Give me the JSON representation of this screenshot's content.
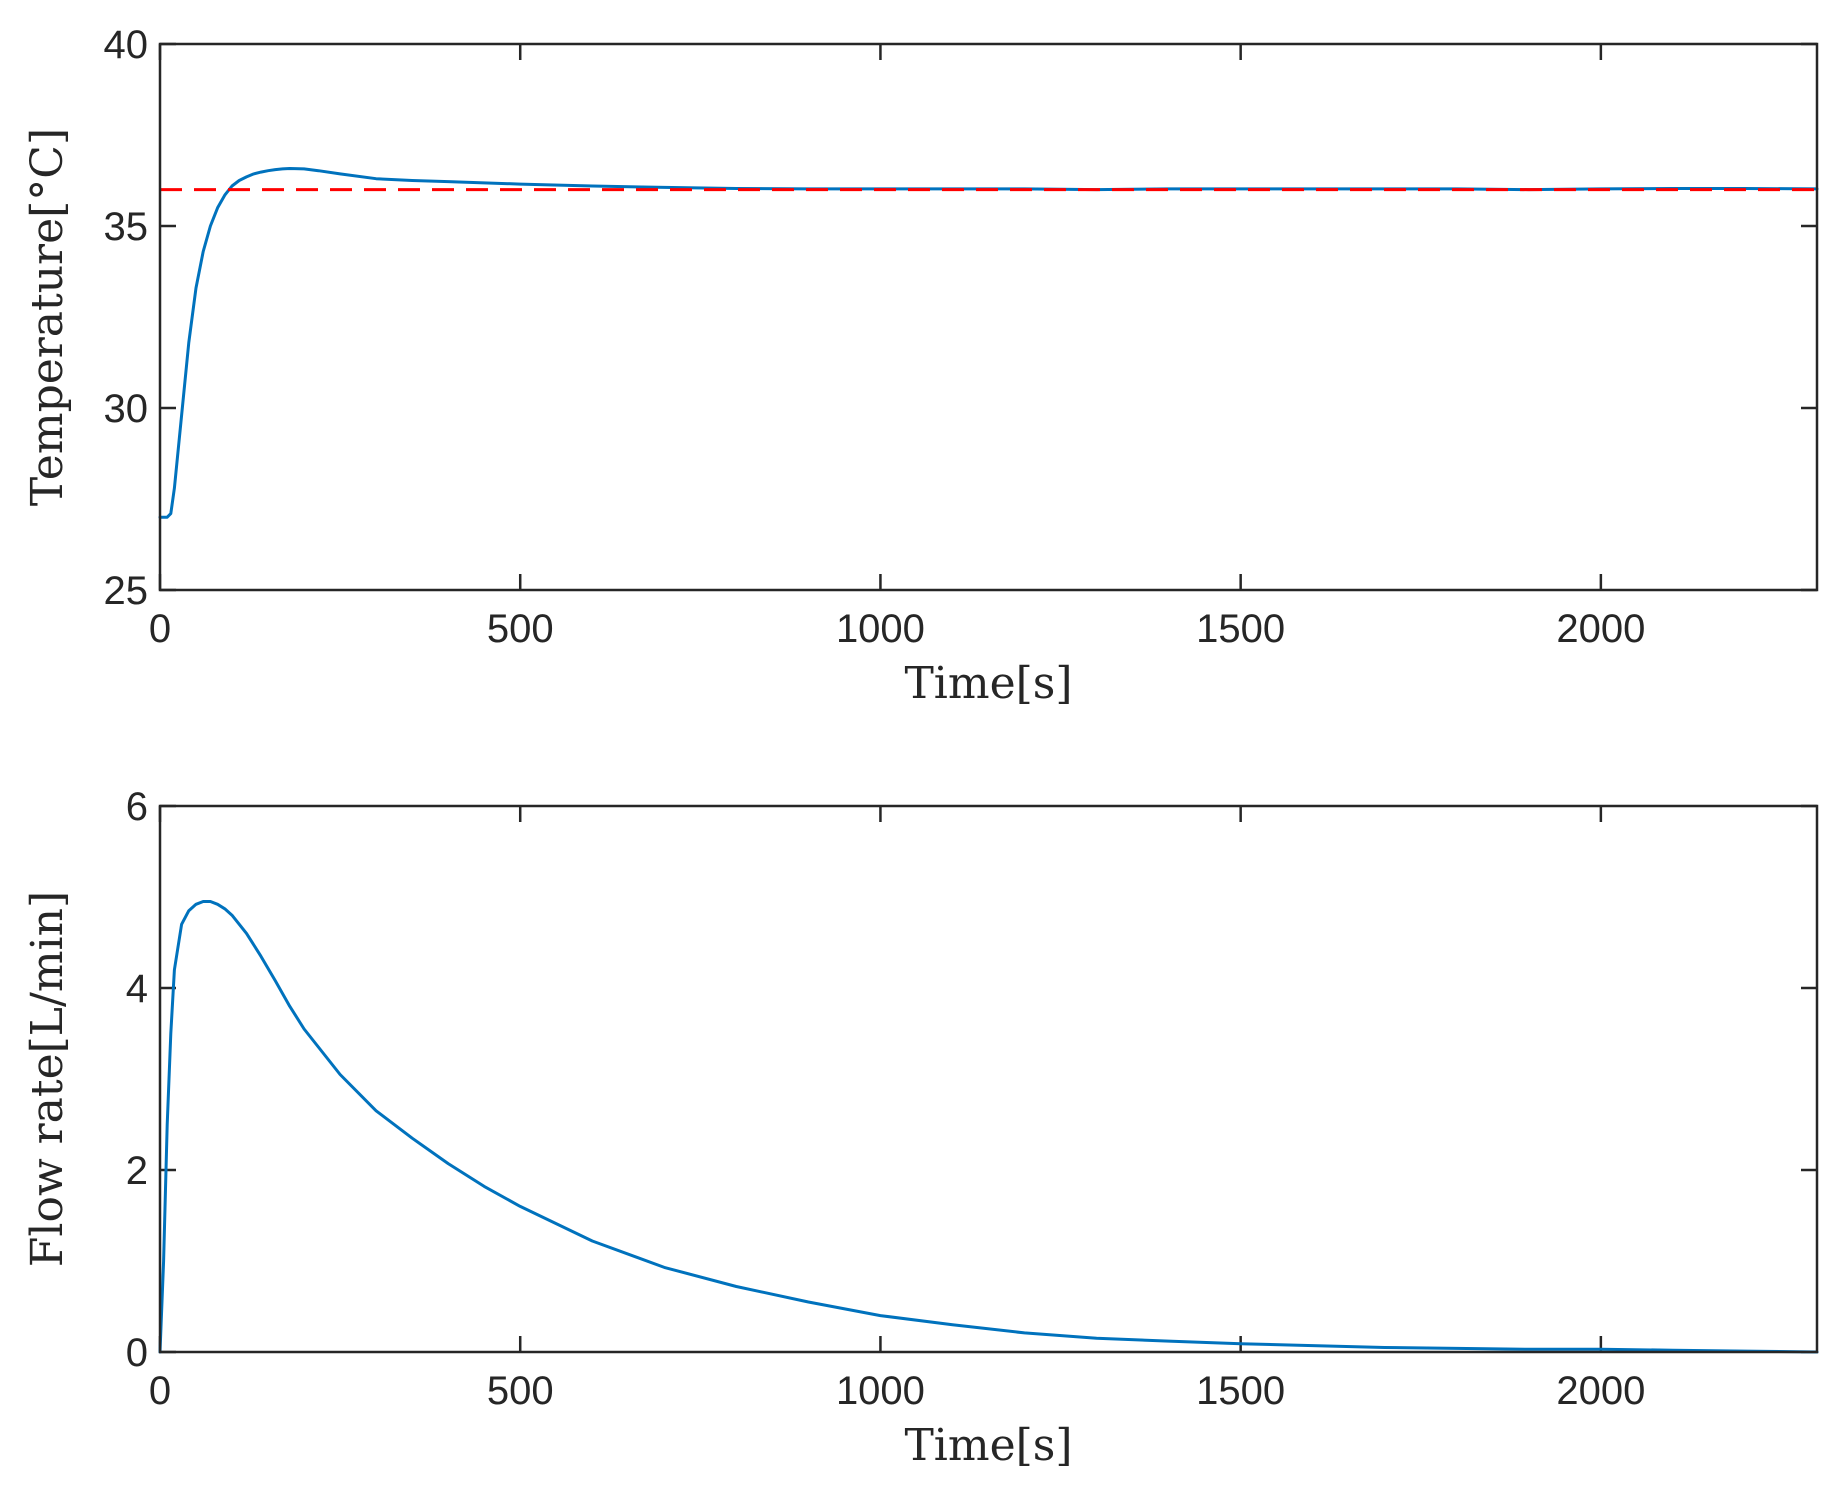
{
  "colors": {
    "series": "#0072BD",
    "reference": "#FF0000",
    "axis": "#262626"
  },
  "chart_data": [
    {
      "type": "line",
      "xlabel": "Time[s]",
      "ylabel": "Temperature[°C]",
      "xlim": [
        0,
        2300
      ],
      "ylim": [
        25,
        40
      ],
      "xticks": [
        0,
        500,
        1000,
        1500,
        2000
      ],
      "yticks": [
        25,
        30,
        35,
        40
      ],
      "grid": false,
      "series": [
        {
          "style": "solid",
          "color": "#0072BD",
          "x": [
            0,
            10,
            15,
            20,
            30,
            40,
            50,
            60,
            70,
            80,
            90,
            100,
            110,
            120,
            130,
            140,
            150,
            160,
            170,
            180,
            200,
            220,
            250,
            300,
            350,
            400,
            500,
            600,
            700,
            800,
            900,
            1000,
            1100,
            1200,
            1300,
            1400,
            1500,
            1600,
            1700,
            1800,
            1900,
            2000,
            2100,
            2200,
            2300
          ],
          "y": [
            27.0,
            27.0,
            27.1,
            27.8,
            29.8,
            31.8,
            33.3,
            34.3,
            35.0,
            35.5,
            35.85,
            36.1,
            36.25,
            36.35,
            36.43,
            36.48,
            36.52,
            36.55,
            36.57,
            36.58,
            36.57,
            36.52,
            36.43,
            36.3,
            36.25,
            36.22,
            36.15,
            36.1,
            36.06,
            36.03,
            36.02,
            36.02,
            36.02,
            36.02,
            36.0,
            36.02,
            36.02,
            36.02,
            36.02,
            36.02,
            36.0,
            36.02,
            36.03,
            36.03,
            36.02
          ]
        },
        {
          "style": "dashed",
          "color": "#FF0000",
          "x": [
            0,
            2300
          ],
          "y": [
            36,
            36
          ]
        }
      ]
    },
    {
      "type": "line",
      "xlabel": "Time[s]",
      "ylabel": "Flow rate[L/min]",
      "xlim": [
        0,
        2300
      ],
      "ylim": [
        0,
        6
      ],
      "xticks": [
        0,
        500,
        1000,
        1500,
        2000
      ],
      "yticks": [
        0,
        2,
        4,
        6
      ],
      "grid": false,
      "series": [
        {
          "style": "solid",
          "color": "#0072BD",
          "x": [
            0,
            5,
            10,
            15,
            20,
            30,
            40,
            50,
            60,
            70,
            80,
            90,
            100,
            120,
            140,
            160,
            180,
            200,
            250,
            300,
            350,
            400,
            450,
            500,
            600,
            700,
            800,
            900,
            1000,
            1100,
            1200,
            1300,
            1400,
            1500,
            1600,
            1700,
            1800,
            1900,
            2000,
            2100,
            2200,
            2300
          ],
          "y": [
            0,
            1.0,
            2.5,
            3.5,
            4.2,
            4.7,
            4.85,
            4.92,
            4.95,
            4.95,
            4.92,
            4.87,
            4.8,
            4.6,
            4.35,
            4.08,
            3.8,
            3.55,
            3.05,
            2.65,
            2.35,
            2.07,
            1.82,
            1.6,
            1.22,
            0.93,
            0.72,
            0.55,
            0.4,
            0.3,
            0.21,
            0.15,
            0.12,
            0.09,
            0.07,
            0.05,
            0.04,
            0.03,
            0.03,
            0.02,
            0.01,
            0.0
          ]
        }
      ]
    }
  ]
}
